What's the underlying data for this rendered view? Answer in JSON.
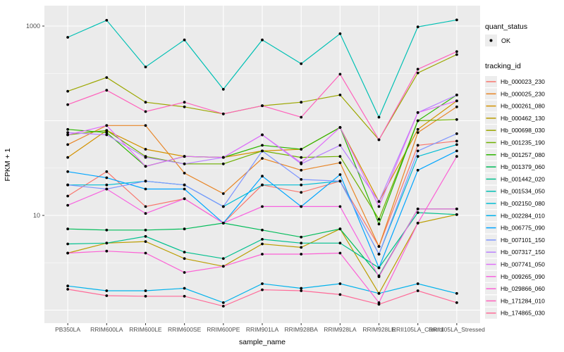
{
  "figure": {
    "background": "#FFFFFF",
    "panel_background": "#EBEBEB",
    "grid_color": "#FFFFFF",
    "axis_text_color": "#4D4D4D",
    "tick_color": "#333333",
    "point_color": "#000000",
    "legend_key_background": "#EDEDED"
  },
  "chart_data": {
    "type": "line",
    "title": "",
    "xlabel": "sample_name",
    "ylabel": "FPKM + 1",
    "y_scale": "log10",
    "ylim": [
      1,
      1500
    ],
    "y_tick_labels": [
      "1000",
      "10"
    ],
    "y_tick_values": [
      1000,
      10
    ],
    "y_gridlines_major": [
      1,
      10,
      100,
      1000
    ],
    "y_gridlines_minor": [
      3.16,
      31.6,
      316
    ],
    "grid": "on",
    "legend_position": "right",
    "categories": [
      "PB350LA",
      "RRIM600LA",
      "RRIM600LE",
      "RRIM600SE",
      "RRIM600PE",
      "RRIM901LA",
      "RRIM928BA",
      "RRIM928LA",
      "RRIM928LE",
      "RRII105LA_Control",
      "RRII105LA_Stressed"
    ],
    "legend": {
      "quant_status_title": "quant_status",
      "quant_status_items": [
        {
          "label": "OK",
          "symbol": "black-point"
        }
      ],
      "tracking_title": "tracking_id"
    },
    "series": [
      {
        "name": "Hb_000023_230",
        "color": "#F8766D",
        "values": [
          16,
          29,
          12.4,
          15,
          8.3,
          21,
          17.5,
          23,
          4.7,
          55,
          61
        ]
      },
      {
        "name": "Hb_000025_230",
        "color": "#E88526",
        "values": [
          56,
          89,
          89,
          28,
          17,
          40,
          30,
          36,
          4.7,
          75,
          140
        ]
      },
      {
        "name": "Hb_000261_080",
        "color": "#D39200",
        "values": [
          41,
          79,
          50,
          42,
          41,
          48,
          50,
          85,
          14,
          81,
          162
        ]
      },
      {
        "name": "Hb_000462_130",
        "color": "#BB9D00",
        "values": [
          4.0,
          5.1,
          5.3,
          3.5,
          2.9,
          5.0,
          4.6,
          7.2,
          1.5,
          8.3,
          10.2
        ]
      },
      {
        "name": "Hb_000698_030",
        "color": "#9CA700",
        "values": [
          205,
          286,
          157,
          140,
          118,
          144,
          157,
          187,
          63,
          320,
          500
        ]
      },
      {
        "name": "Hb_001235_190",
        "color": "#6FB000",
        "values": [
          71,
          79,
          42,
          35,
          35,
          48,
          41,
          42,
          9.1,
          100,
          103
        ]
      },
      {
        "name": "Hb_001257_080",
        "color": "#2DB600",
        "values": [
          81,
          75,
          33,
          42,
          41,
          55,
          50,
          85,
          8.1,
          100,
          187
        ]
      },
      {
        "name": "Hb_001379_060",
        "color": "#00BC59",
        "values": [
          7.2,
          7.0,
          7.0,
          7.2,
          8.3,
          7.0,
          5.9,
          7.2,
          2.3,
          11.7,
          11.7
        ]
      },
      {
        "name": "Hb_001442_020",
        "color": "#00C08E",
        "values": [
          5.0,
          5.1,
          6.0,
          4.1,
          3.5,
          5.6,
          5.1,
          5.1,
          2.8,
          10.7,
          10.2
        ]
      },
      {
        "name": "Hb_001534_050",
        "color": "#00C0B4",
        "values": [
          760,
          1150,
          370,
          714,
          215,
          714,
          400,
          830,
          109,
          980,
          1160
        ]
      },
      {
        "name": "Hb_002150_080",
        "color": "#00BDD4",
        "values": [
          21,
          21,
          23,
          21,
          12.4,
          21,
          21,
          23,
          3.9,
          42,
          56
        ]
      },
      {
        "name": "Hb_002284_010",
        "color": "#00B2EC",
        "values": [
          1.8,
          1.6,
          1.6,
          1.7,
          1.2,
          1.9,
          1.7,
          1.9,
          1.5,
          1.9,
          1.5
        ]
      },
      {
        "name": "Hb_006775_090",
        "color": "#00A5FF",
        "values": [
          29,
          25,
          19,
          19,
          8.3,
          26,
          12.4,
          27,
          2.8,
          30,
          48
        ]
      },
      {
        "name": "Hb_007101_150",
        "color": "#7F96FF",
        "values": [
          21,
          19,
          23,
          21,
          12.4,
          48,
          24,
          23,
          3.9,
          48,
          73
        ]
      },
      {
        "name": "Hb_007317_150",
        "color": "#B982FF",
        "values": [
          75,
          71,
          41,
          35,
          41,
          71,
          35,
          55,
          14,
          122,
          187
        ]
      },
      {
        "name": "Hb_007741_050",
        "color": "#DF70F8",
        "values": [
          71,
          89,
          33,
          42,
          41,
          71,
          36,
          85,
          12.4,
          122,
          162
        ]
      },
      {
        "name": "Hb_009265_090",
        "color": "#F763E0",
        "values": [
          12.8,
          19,
          10.5,
          15,
          8.3,
          12.4,
          12.4,
          12.4,
          2.25,
          11.7,
          11.7
        ]
      },
      {
        "name": "Hb_029866_060",
        "color": "#FC61D5",
        "values": [
          4.0,
          4.2,
          4.0,
          2.5,
          2.9,
          3.9,
          3.9,
          4.0,
          1.2,
          8.3,
          42
        ]
      },
      {
        "name": "Hb_171284_010",
        "color": "#FF62BC",
        "values": [
          148,
          210,
          125,
          157,
          118,
          144,
          109,
          310,
          63,
          350,
          537
        ]
      },
      {
        "name": "Hb_174865_030",
        "color": "#FF6A98",
        "values": [
          1.66,
          1.42,
          1.4,
          1.4,
          1.1,
          1.64,
          1.6,
          1.46,
          1.15,
          1.6,
          1.2
        ]
      }
    ]
  }
}
